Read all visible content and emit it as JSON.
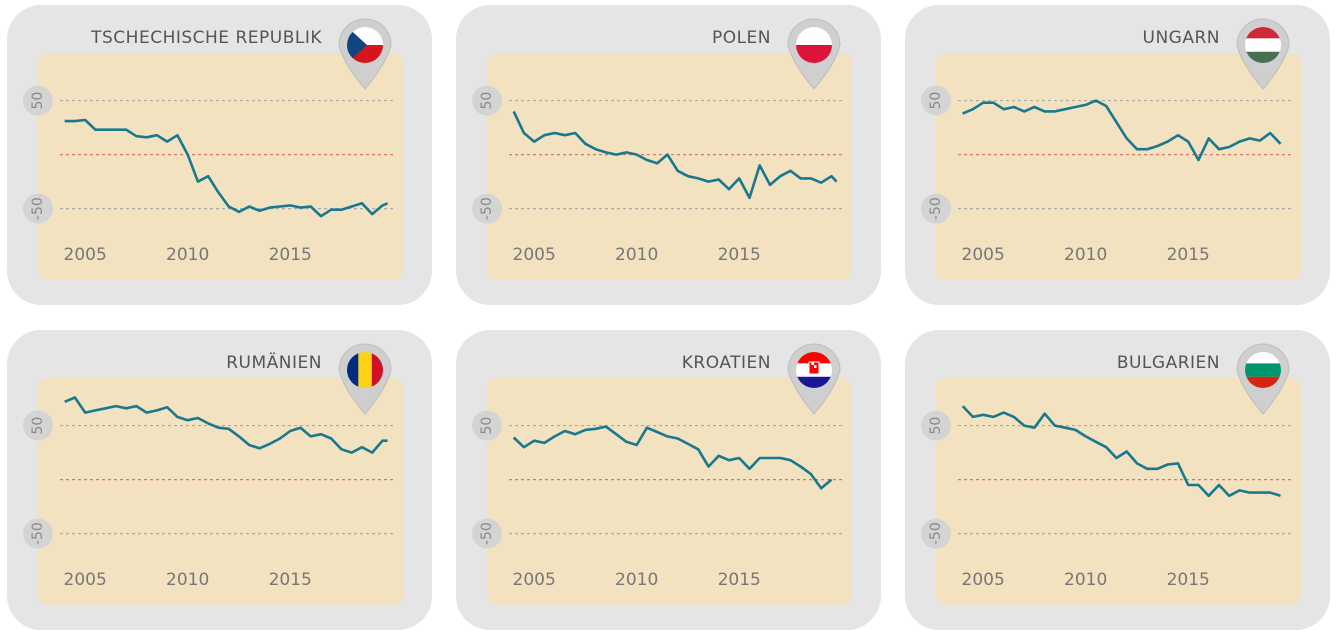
{
  "chart_data": [
    {
      "type": "line",
      "title": "TSCHECHISCHE REPUBLIK",
      "xlim": [
        2002.7,
        2020.5
      ],
      "ylim": [
        -116,
        94
      ],
      "xticks": [
        2005,
        2010,
        2015
      ],
      "yticks": [
        50,
        -50
      ],
      "hline": {
        "value": 0,
        "color": "#d9776b"
      },
      "grid": true,
      "series": [
        {
          "color": "#17788f",
          "x": [
            2004,
            2004.5,
            2005,
            2005.5,
            2006,
            2006.5,
            2007,
            2007.5,
            2008,
            2008.5,
            2009,
            2009.5,
            2010,
            2010.5,
            2011,
            2011.5,
            2012,
            2012.5,
            2013,
            2013.5,
            2014,
            2014.5,
            2015,
            2015.5,
            2016,
            2016.5,
            2017,
            2017.5,
            2018,
            2018.5,
            2019,
            2019.5,
            2019.75
          ],
          "values": [
            31,
            31,
            32,
            23,
            23,
            23,
            23,
            17,
            16,
            18,
            12,
            18,
            0,
            -25,
            -20,
            -35,
            -48,
            -53,
            -48,
            -52,
            -49,
            -48,
            -47,
            -49,
            -48,
            -57,
            -51,
            -51,
            -48,
            -45,
            -55,
            -47,
            -45
          ]
        }
      ]
    },
    {
      "type": "line",
      "title": "POLEN",
      "xlim": [
        2002.7,
        2020.5
      ],
      "ylim": [
        -116,
        94
      ],
      "xticks": [
        2005,
        2010,
        2015
      ],
      "yticks": [
        50,
        -50
      ],
      "hline": {
        "value": 0,
        "color": "#d9776b"
      },
      "grid": true,
      "series": [
        {
          "color": "#17788f",
          "x": [
            2004,
            2004.5,
            2005,
            2005.5,
            2006,
            2006.5,
            2007,
            2007.5,
            2008,
            2008.5,
            2009,
            2009.5,
            2010,
            2010.5,
            2011,
            2011.5,
            2012,
            2012.5,
            2013,
            2013.5,
            2014,
            2014.5,
            2015,
            2015.5,
            2016,
            2016.5,
            2017,
            2017.5,
            2018,
            2018.5,
            2019,
            2019.5,
            2019.75
          ],
          "values": [
            40,
            20,
            12,
            18,
            20,
            18,
            20,
            10,
            5,
            2,
            0,
            2,
            0,
            -5,
            -8,
            0,
            -15,
            -20,
            -22,
            -25,
            -23,
            -32,
            -22,
            -40,
            -10,
            -28,
            -20,
            -15,
            -22,
            -22,
            -26,
            -20,
            -25
          ]
        }
      ]
    },
    {
      "type": "line",
      "title": "UNGARN",
      "xlim": [
        2002.7,
        2020.5
      ],
      "ylim": [
        -116,
        94
      ],
      "xticks": [
        2005,
        2010,
        2015
      ],
      "yticks": [
        50,
        -50
      ],
      "hline": {
        "value": 0,
        "color": "#d9776b"
      },
      "grid": true,
      "series": [
        {
          "color": "#17788f",
          "x": [
            2004,
            2004.5,
            2005,
            2005.5,
            2006,
            2006.5,
            2007,
            2007.5,
            2008,
            2008.5,
            2009,
            2009.5,
            2010,
            2010.5,
            2011,
            2012,
            2012.5,
            2013,
            2013.5,
            2014,
            2014.5,
            2015,
            2015.5,
            2016,
            2016.5,
            2017,
            2017.5,
            2018,
            2018.5,
            2019,
            2019.5
          ],
          "values": [
            38,
            42,
            48,
            48,
            42,
            44,
            40,
            44,
            40,
            40,
            42,
            44,
            46,
            50,
            45,
            15,
            5,
            5,
            8,
            12,
            18,
            12,
            -5,
            15,
            5,
            7,
            12,
            15,
            13,
            20,
            10
          ]
        }
      ]
    },
    {
      "type": "line",
      "title": "RUMÄNIEN",
      "xlim": [
        2002.7,
        2020.5
      ],
      "ylim": [
        -116,
        94
      ],
      "xticks": [
        2005,
        2010,
        2015
      ],
      "yticks": [
        50,
        -50
      ],
      "hline": {
        "value": 0,
        "color": "#d9776b"
      },
      "grid": true,
      "series": [
        {
          "color": "#17788f",
          "x": [
            2004,
            2004.5,
            2005,
            2005.5,
            2006,
            2006.5,
            2007,
            2007.5,
            2008,
            2008.5,
            2009,
            2009.5,
            2010,
            2010.5,
            2011,
            2011.5,
            2012,
            2012.5,
            2013,
            2013.5,
            2014,
            2014.5,
            2015,
            2015.5,
            2016,
            2016.5,
            2017,
            2017.5,
            2018,
            2018.5,
            2019,
            2019.5,
            2019.75
          ],
          "values": [
            72,
            76,
            62,
            64,
            66,
            68,
            66,
            68,
            62,
            64,
            67,
            58,
            55,
            57,
            52,
            48,
            47,
            40,
            32,
            29,
            33,
            38,
            45,
            48,
            40,
            42,
            38,
            28,
            25,
            30,
            25,
            36,
            36
          ]
        }
      ]
    },
    {
      "type": "line",
      "title": "KROATIEN",
      "xlim": [
        2002.7,
        2020.5
      ],
      "ylim": [
        -116,
        94
      ],
      "xticks": [
        2005,
        2010,
        2015
      ],
      "yticks": [
        50,
        -50
      ],
      "hline": {
        "value": 0,
        "color": "#d9776b"
      },
      "grid": true,
      "series": [
        {
          "color": "#17788f",
          "x": [
            2004,
            2004.5,
            2005,
            2005.5,
            2006,
            2006.5,
            2007,
            2007.5,
            2008,
            2008.5,
            2009,
            2009.5,
            2010,
            2010.5,
            2011,
            2011.5,
            2012,
            2012.5,
            2013,
            2013.5,
            2014,
            2014.5,
            2015,
            2015.5,
            2016,
            2016.5,
            2017,
            2017.5,
            2018,
            2018.5,
            2019,
            2019.5
          ],
          "values": [
            39,
            30,
            36,
            34,
            40,
            45,
            42,
            46,
            47,
            49,
            42,
            35,
            32,
            48,
            44,
            40,
            38,
            33,
            28,
            12,
            22,
            18,
            20,
            10,
            20,
            20,
            20,
            18,
            12,
            5,
            -8,
            0
          ]
        }
      ]
    },
    {
      "type": "line",
      "title": "BULGARIEN",
      "xlim": [
        2002.7,
        2020.5
      ],
      "ylim": [
        -116,
        94
      ],
      "xticks": [
        2005,
        2010,
        2015
      ],
      "yticks": [
        50,
        -50
      ],
      "hline": {
        "value": 0,
        "color": "#d9776b"
      },
      "grid": true,
      "series": [
        {
          "color": "#17788f",
          "x": [
            2004,
            2004.5,
            2005,
            2005.5,
            2006,
            2006.5,
            2007,
            2007.5,
            2008,
            2008.5,
            2009,
            2009.5,
            2010,
            2010.5,
            2011,
            2011.5,
            2012,
            2012.5,
            2013,
            2013.5,
            2014,
            2014.5,
            2015,
            2015.5,
            2016,
            2016.5,
            2017,
            2017.5,
            2018,
            2018.5,
            2019,
            2019.5
          ],
          "values": [
            68,
            58,
            60,
            58,
            62,
            58,
            50,
            48,
            61,
            50,
            48,
            46,
            40,
            35,
            30,
            20,
            26,
            15,
            10,
            10,
            14,
            15,
            -5,
            -5,
            -15,
            -5,
            -15,
            -10,
            -12,
            -12,
            -12,
            -15
          ]
        }
      ]
    }
  ]
}
